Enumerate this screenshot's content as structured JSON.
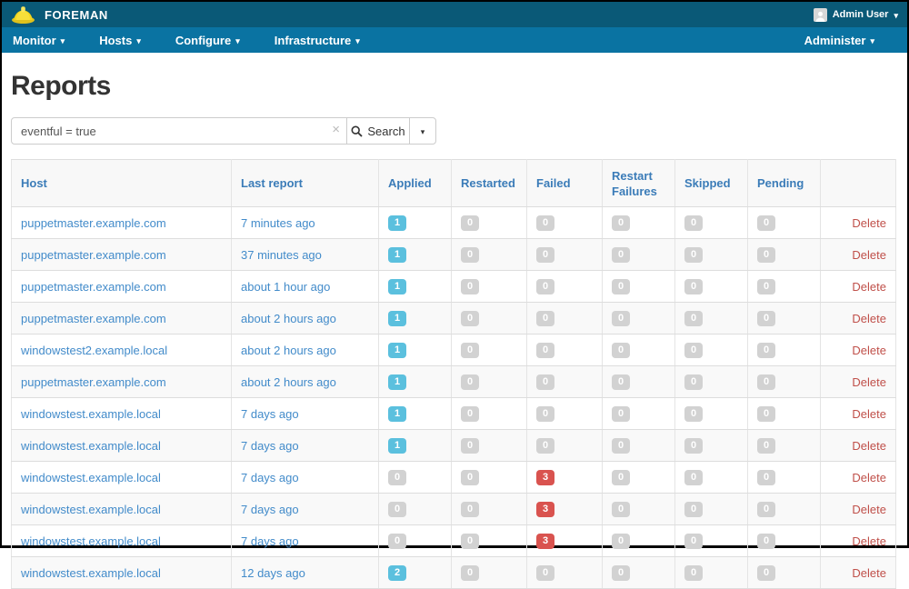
{
  "header": {
    "brand": "FOREMAN",
    "user": "Admin User"
  },
  "nav": {
    "items": [
      {
        "label": "Monitor"
      },
      {
        "label": "Hosts"
      },
      {
        "label": "Configure"
      },
      {
        "label": "Infrastructure"
      }
    ],
    "right_item": {
      "label": "Administer"
    }
  },
  "page": {
    "title": "Reports"
  },
  "search": {
    "query": "eventful = true",
    "button_label": "Search",
    "clear_icon": "×",
    "caret_icon": "▾"
  },
  "table": {
    "columns": [
      "Host",
      "Last report",
      "Applied",
      "Restarted",
      "Failed",
      "Restart Failures",
      "Skipped",
      "Pending",
      ""
    ],
    "delete_label": "Delete",
    "rows": [
      {
        "host": "puppetmaster.example.com",
        "last_report": "7 minutes ago",
        "applied": 1,
        "restarted": 0,
        "failed": 0,
        "restart_failures": 0,
        "skipped": 0,
        "pending": 0
      },
      {
        "host": "puppetmaster.example.com",
        "last_report": "37 minutes ago",
        "applied": 1,
        "restarted": 0,
        "failed": 0,
        "restart_failures": 0,
        "skipped": 0,
        "pending": 0
      },
      {
        "host": "puppetmaster.example.com",
        "last_report": "about 1 hour ago",
        "applied": 1,
        "restarted": 0,
        "failed": 0,
        "restart_failures": 0,
        "skipped": 0,
        "pending": 0
      },
      {
        "host": "puppetmaster.example.com",
        "last_report": "about 2 hours ago",
        "applied": 1,
        "restarted": 0,
        "failed": 0,
        "restart_failures": 0,
        "skipped": 0,
        "pending": 0
      },
      {
        "host": "windowstest2.example.local",
        "last_report": "about 2 hours ago",
        "applied": 1,
        "restarted": 0,
        "failed": 0,
        "restart_failures": 0,
        "skipped": 0,
        "pending": 0
      },
      {
        "host": "puppetmaster.example.com",
        "last_report": "about 2 hours ago",
        "applied": 1,
        "restarted": 0,
        "failed": 0,
        "restart_failures": 0,
        "skipped": 0,
        "pending": 0
      },
      {
        "host": "windowstest.example.local",
        "last_report": "7 days ago",
        "applied": 1,
        "restarted": 0,
        "failed": 0,
        "restart_failures": 0,
        "skipped": 0,
        "pending": 0
      },
      {
        "host": "windowstest.example.local",
        "last_report": "7 days ago",
        "applied": 1,
        "restarted": 0,
        "failed": 0,
        "restart_failures": 0,
        "skipped": 0,
        "pending": 0
      },
      {
        "host": "windowstest.example.local",
        "last_report": "7 days ago",
        "applied": 0,
        "restarted": 0,
        "failed": 3,
        "restart_failures": 0,
        "skipped": 0,
        "pending": 0
      },
      {
        "host": "windowstest.example.local",
        "last_report": "7 days ago",
        "applied": 0,
        "restarted": 0,
        "failed": 3,
        "restart_failures": 0,
        "skipped": 0,
        "pending": 0
      },
      {
        "host": "windowstest.example.local",
        "last_report": "7 days ago",
        "applied": 0,
        "restarted": 0,
        "failed": 3,
        "restart_failures": 0,
        "skipped": 0,
        "pending": 0
      },
      {
        "host": "windowstest.example.local",
        "last_report": "12 days ago",
        "applied": 2,
        "restarted": 0,
        "failed": 0,
        "restart_failures": 0,
        "skipped": 0,
        "pending": 0
      }
    ]
  },
  "colors": {
    "topbar": "#0a5977",
    "navbar": "#0a73a2",
    "link_blue": "#428bca",
    "delete_red": "#c0504a",
    "badge_info": "#5bc0de",
    "badge_danger": "#d9534f",
    "badge_default": "#d2d2d2"
  }
}
